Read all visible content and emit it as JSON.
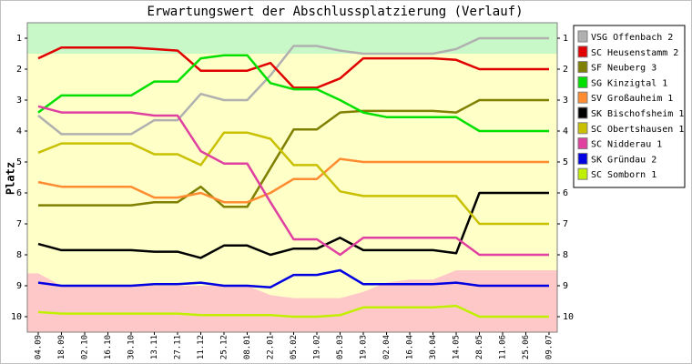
{
  "chart_data": {
    "type": "line",
    "title": "Erwartungswert der Abschlussplatzierung (Verlauf)",
    "y_label": "Platz",
    "categories": [
      "04.09",
      "18.09",
      "02.10",
      "16.10",
      "30.10",
      "13.11",
      "27.11",
      "11.12",
      "25.12",
      "08.01",
      "22.01",
      "05.02",
      "19.02",
      "05.03",
      "19.03",
      "02.04",
      "16.04",
      "30.04",
      "14.05",
      "28.05",
      "11.06",
      "25.06",
      "09.07"
    ],
    "ylim": [
      10.5,
      0.5
    ],
    "yticks": [
      1,
      2,
      3,
      4,
      5,
      6,
      7,
      8,
      9,
      10
    ],
    "background": "#ffffc8",
    "promotion_zone": {
      "color": "#c8f8c8",
      "from": 0.5,
      "to": 1.5
    },
    "relegation_zone": {
      "color": "#ffc8c8",
      "to": 10.5,
      "from": [
        8.6,
        9.0,
        9.0,
        9.0,
        9.0,
        9.0,
        9.0,
        9.0,
        9.0,
        9.0,
        9.3,
        9.4,
        9.4,
        9.4,
        9.2,
        8.9,
        8.8,
        8.8,
        8.5,
        8.5,
        8.5,
        8.5,
        8.5
      ]
    },
    "series": [
      {
        "name": "VSG Offenbach 2",
        "color": "#b0b0b0",
        "values": [
          3.5,
          4.1,
          4.1,
          4.1,
          4.1,
          3.65,
          3.65,
          2.8,
          3.0,
          3.0,
          2.2,
          1.25,
          1.25,
          1.4,
          1.5,
          1.5,
          1.5,
          1.5,
          1.35,
          1,
          1,
          1,
          1
        ]
      },
      {
        "name": "SC Heusenstamm 2",
        "color": "#e00000",
        "values": [
          1.65,
          1.3,
          1.3,
          1.3,
          1.3,
          1.35,
          1.4,
          2.05,
          2.05,
          2.05,
          1.8,
          2.6,
          2.6,
          2.3,
          1.65,
          1.65,
          1.65,
          1.65,
          1.7,
          2.0,
          2.0,
          2.0,
          2.0
        ]
      },
      {
        "name": "SF Neuberg 3",
        "color": "#808000",
        "values": [
          6.4,
          6.4,
          6.4,
          6.4,
          6.4,
          6.3,
          6.3,
          5.8,
          6.45,
          6.45,
          5.2,
          3.95,
          3.95,
          3.4,
          3.35,
          3.35,
          3.35,
          3.35,
          3.4,
          3.0,
          3.0,
          3.0,
          3.0
        ]
      },
      {
        "name": "SG Kinzigtal 1",
        "color": "#00e000",
        "values": [
          3.4,
          2.85,
          2.85,
          2.85,
          2.85,
          2.4,
          2.4,
          1.65,
          1.55,
          1.55,
          2.45,
          2.65,
          2.65,
          3.0,
          3.4,
          3.55,
          3.55,
          3.55,
          3.55,
          4.0,
          4.0,
          4.0,
          4.0
        ]
      },
      {
        "name": "SV Großauheim 1",
        "color": "#ff8c30",
        "values": [
          5.65,
          5.8,
          5.8,
          5.8,
          5.8,
          6.15,
          6.15,
          6.0,
          6.3,
          6.3,
          6.0,
          5.55,
          5.55,
          4.9,
          5.0,
          5.0,
          5.0,
          5.0,
          5.0,
          5.0,
          5.0,
          5.0,
          5.0
        ]
      },
      {
        "name": "SK Bischofsheim 1",
        "color": "#000000",
        "values": [
          7.65,
          7.85,
          7.85,
          7.85,
          7.85,
          7.9,
          7.9,
          8.1,
          7.7,
          7.7,
          8.0,
          7.8,
          7.8,
          7.45,
          7.85,
          7.85,
          7.85,
          7.85,
          7.95,
          6.0,
          6.0,
          6.0,
          6.0
        ]
      },
      {
        "name": "SC Obertshausen 1",
        "color": "#c8c000",
        "values": [
          4.7,
          4.4,
          4.4,
          4.4,
          4.4,
          4.75,
          4.75,
          5.1,
          4.05,
          4.05,
          4.25,
          5.1,
          5.1,
          5.95,
          6.1,
          6.1,
          6.1,
          6.1,
          6.1,
          7.0,
          7.0,
          7.0,
          7.0
        ]
      },
      {
        "name": "SC Nidderau 1",
        "color": "#e040a0",
        "values": [
          3.2,
          3.4,
          3.4,
          3.4,
          3.4,
          3.5,
          3.5,
          4.65,
          5.05,
          5.05,
          6.3,
          7.5,
          7.5,
          8.0,
          7.45,
          7.45,
          7.45,
          7.45,
          7.45,
          8.0,
          8.0,
          8.0,
          8.0
        ]
      },
      {
        "name": "SK Gründau 2",
        "color": "#0000e0",
        "values": [
          8.9,
          9.0,
          9.0,
          9.0,
          9.0,
          8.95,
          8.95,
          8.9,
          9.0,
          9.0,
          9.05,
          8.65,
          8.65,
          8.5,
          8.95,
          8.95,
          8.95,
          8.95,
          8.9,
          9.0,
          9.0,
          9.0,
          9.0
        ]
      },
      {
        "name": "SC Somborn 1",
        "color": "#c0f000",
        "values": [
          9.85,
          9.9,
          9.9,
          9.9,
          9.9,
          9.9,
          9.9,
          9.95,
          9.95,
          9.95,
          9.95,
          10.0,
          10.0,
          9.95,
          9.7,
          9.7,
          9.7,
          9.7,
          9.65,
          10.0,
          10.0,
          10.0,
          10.0
        ]
      }
    ]
  }
}
